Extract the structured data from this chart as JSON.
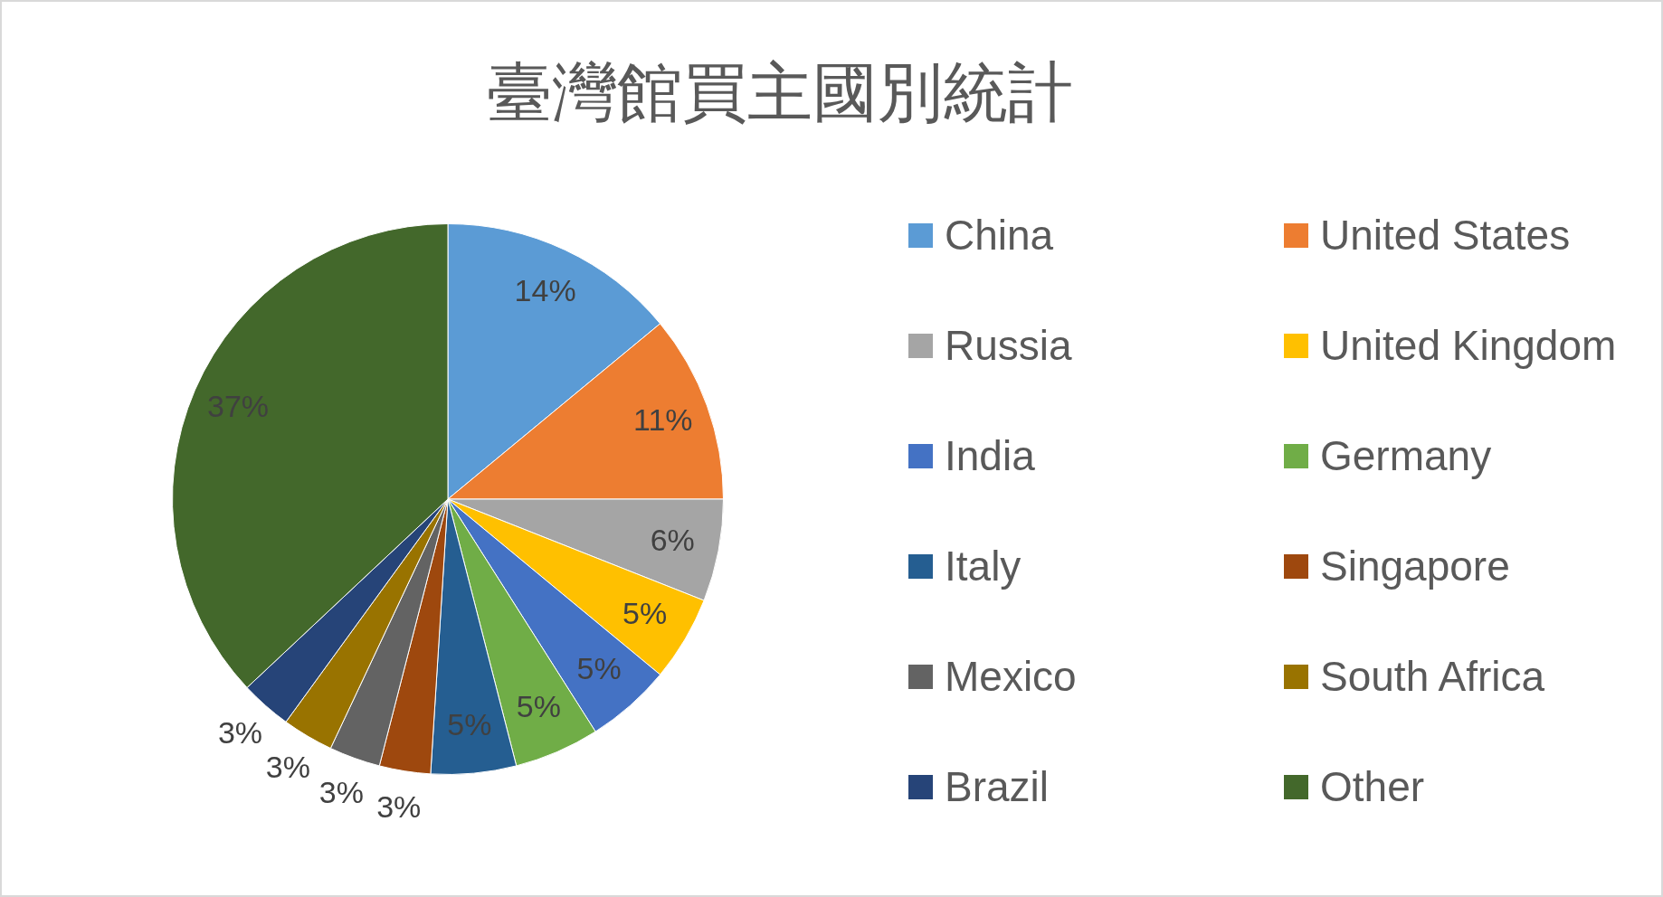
{
  "chart_data": {
    "type": "pie",
    "title": "臺灣館買主國別統計",
    "categories": [
      "China",
      "United States",
      "Russia",
      "United Kingdom",
      "India",
      "Germany",
      "Italy",
      "Singapore",
      "Mexico",
      "South Africa",
      "Brazil",
      "Other"
    ],
    "values": [
      14,
      11,
      6,
      5,
      5,
      5,
      5,
      3,
      3,
      3,
      3,
      37
    ],
    "colors": [
      "#5b9bd5",
      "#ed7d31",
      "#a5a5a5",
      "#ffc000",
      "#4472c4",
      "#70ad47",
      "#255e91",
      "#9e480e",
      "#636363",
      "#997300",
      "#264478",
      "#43682b"
    ],
    "value_labels": [
      "14%",
      "11%",
      "6%",
      "5%",
      "5%",
      "5%",
      "5%",
      "3%",
      "3%",
      "3%",
      "3%",
      "37%"
    ],
    "legend": "right"
  }
}
